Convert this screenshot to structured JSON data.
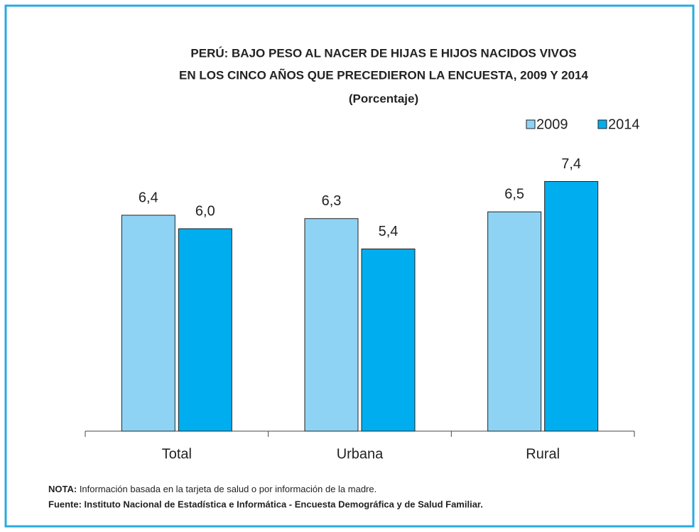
{
  "chart_data": {
    "type": "bar",
    "title": [
      "PERÚ: BAJO PESO AL NACER DE HIJAS E HIJOS NACIDOS VIVOS",
      "EN LOS CINCO AÑOS QUE PRECEDIERON LA ENCUESTA, 2009 Y 2014"
    ],
    "subtitle": "(Porcentaje)",
    "categories": [
      "Total",
      "Urbana",
      "Rural"
    ],
    "series": [
      {
        "name": "2009",
        "color": "#8fd3f4",
        "values": [
          6.4,
          6.3,
          6.5
        ],
        "value_labels": [
          "6,4",
          "6,3",
          "6,5"
        ]
      },
      {
        "name": "2014",
        "color": "#00aeef",
        "values": [
          6.0,
          5.4,
          7.4
        ],
        "value_labels": [
          "6,0",
          "5,4",
          "7,4"
        ]
      }
    ],
    "ylim": [
      0,
      8
    ]
  },
  "notes": {
    "label": "NOTA:",
    "text": " Información basada en la tarjeta de salud o por información de la madre.",
    "source": "Fuente: Instituto Nacional de Estadística e Informática - Encuesta Demográfica y de  Salud Familiar."
  }
}
